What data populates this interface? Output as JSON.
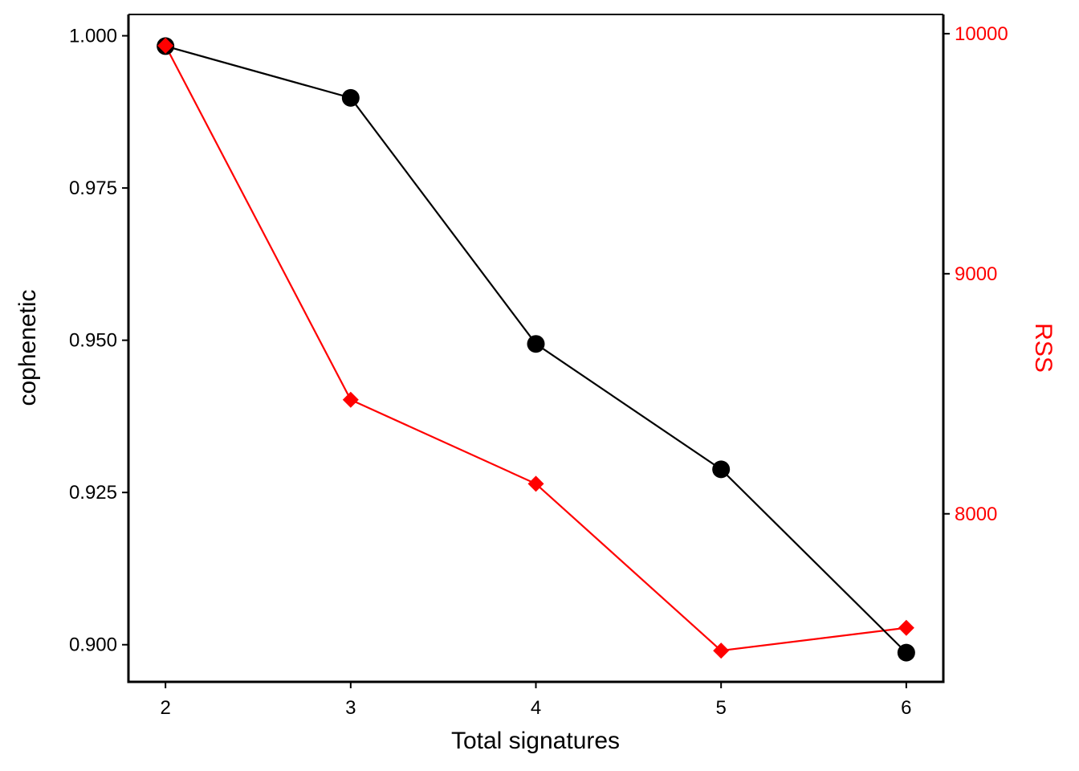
{
  "chart_data": {
    "type": "line",
    "title": "",
    "xlabel": "Total signatures",
    "ylabel_left": "cophenetic",
    "ylabel_right": "RSS",
    "x": [
      2,
      3,
      4,
      5,
      6
    ],
    "x_ticks": [
      "2",
      "3",
      "4",
      "5",
      "6"
    ],
    "xlim": [
      1.8,
      6.2
    ],
    "y_left_ticks": [
      "0.900",
      "0.925",
      "0.950",
      "0.975",
      "1.000"
    ],
    "y_left_tick_values": [
      0.9,
      0.925,
      0.95,
      0.975,
      1.0
    ],
    "ylim_left": [
      0.8939,
      1.0035
    ],
    "y_right_ticks": [
      "8000",
      "9000",
      "10000"
    ],
    "y_right_tick_values": [
      8000,
      9000,
      10000
    ],
    "ylim_right": [
      7300,
      10080
    ],
    "grid": false,
    "legend": "none",
    "series": [
      {
        "axis": "left",
        "color": "#000000",
        "marker": "circle",
        "values": [
          0.9983,
          0.9898,
          0.9494,
          0.9288,
          0.8987
        ]
      },
      {
        "axis": "right",
        "color": "#ff0000",
        "marker": "diamond",
        "values": [
          9950,
          8475,
          8125,
          7430,
          7525
        ]
      }
    ]
  }
}
